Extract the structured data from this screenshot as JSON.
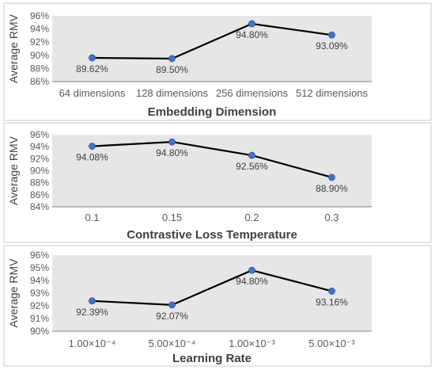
{
  "chart_data": [
    {
      "type": "line",
      "ylabel": "Average RMV",
      "xlabel": "Embedding Dimension",
      "categories": [
        "64 dimensions",
        "128 dimensions",
        "256 dimensions",
        "512 dimensions"
      ],
      "values": [
        89.62,
        89.5,
        94.8,
        93.09
      ],
      "data_labels": [
        "89.62%",
        "89.50%",
        "94.80%",
        "93.09%"
      ],
      "label_side": [
        "below",
        "below",
        "below",
        "below"
      ],
      "ylim": [
        86,
        96
      ],
      "yticks": [
        "86%",
        "88%",
        "90%",
        "92%",
        "94%",
        "96%"
      ],
      "ytick_values": [
        86,
        88,
        90,
        92,
        94,
        96
      ],
      "marker_color": "#4472c4",
      "line_color": "#000000",
      "background": "#e6e6e6"
    },
    {
      "type": "line",
      "ylabel": "Average RMV",
      "xlabel": "Contrastive Loss Temperature",
      "categories": [
        "0.1",
        "0.15",
        "0.2",
        "0.3"
      ],
      "values": [
        94.08,
        94.8,
        92.56,
        88.9
      ],
      "data_labels": [
        "94.08%",
        "94.80%",
        "92.56%",
        "88.90%"
      ],
      "label_side": [
        "below",
        "below",
        "below",
        "below"
      ],
      "ylim": [
        84,
        96
      ],
      "yticks": [
        "84%",
        "86%",
        "88%",
        "90%",
        "92%",
        "94%",
        "96%"
      ],
      "ytick_values": [
        84,
        86,
        88,
        90,
        92,
        94,
        96
      ],
      "marker_color": "#4472c4",
      "line_color": "#000000",
      "background": "#e6e6e6"
    },
    {
      "type": "line",
      "ylabel": "Average RMV",
      "xlabel": "Learning Rate",
      "categories": [
        "1.00×10⁻⁴",
        "5.00×10⁻⁴",
        "1.00×10⁻³",
        "5.00×10⁻³"
      ],
      "values": [
        92.39,
        92.07,
        94.8,
        93.16
      ],
      "data_labels": [
        "92.39%",
        "92.07%",
        "94.80%",
        "93.16%"
      ],
      "label_side": [
        "below",
        "below",
        "below",
        "below"
      ],
      "ylim": [
        90,
        96
      ],
      "yticks": [
        "90%",
        "91%",
        "92%",
        "93%",
        "94%",
        "95%",
        "96%"
      ],
      "ytick_values": [
        90,
        91,
        92,
        93,
        94,
        95,
        96
      ],
      "marker_color": "#4472c4",
      "line_color": "#000000",
      "background": "#e6e6e6"
    }
  ]
}
